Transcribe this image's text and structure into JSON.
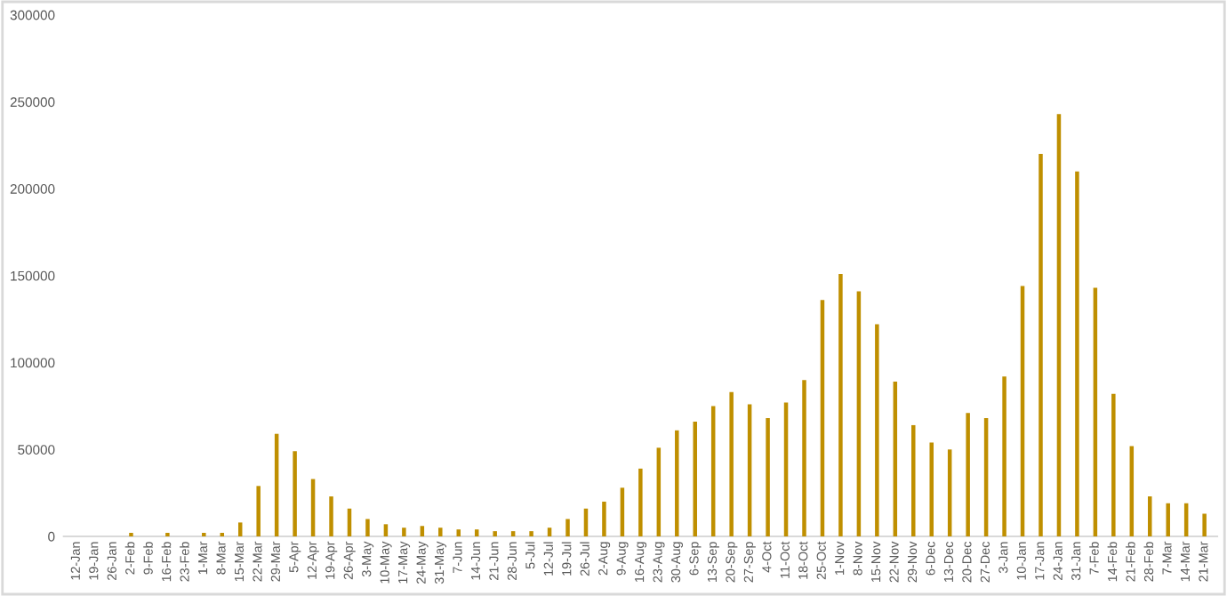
{
  "chart_data": {
    "type": "bar",
    "categories": [
      "12-Jan",
      "19-Jan",
      "26-Jan",
      "2-Feb",
      "9-Feb",
      "16-Feb",
      "23-Feb",
      "1-Mar",
      "8-Mar",
      "15-Mar",
      "22-Mar",
      "29-Mar",
      "5-Apr",
      "12-Apr",
      "19-Apr",
      "26-Apr",
      "3-May",
      "10-May",
      "17-May",
      "24-May",
      "31-May",
      "7-Jun",
      "14-Jun",
      "21-Jun",
      "28-Jun",
      "5-Jul",
      "12-Jul",
      "19-Jul",
      "26-Jul",
      "2-Aug",
      "9-Aug",
      "16-Aug",
      "23-Aug",
      "30-Aug",
      "6-Sep",
      "13-Sep",
      "20-Sep",
      "27-Sep",
      "4-Oct",
      "11-Oct",
      "18-Oct",
      "25-Oct",
      "1-Nov",
      "8-Nov",
      "15-Nov",
      "22-Nov",
      "29-Nov",
      "6-Dec",
      "13-Dec",
      "20-Dec",
      "27-Dec",
      "3-Jan",
      "10-Jan",
      "17-Jan",
      "24-Jan",
      "31-Jan",
      "7-Feb",
      "14-Feb",
      "21-Feb",
      "28-Feb",
      "7-Mar",
      "14-Mar",
      "21-Mar"
    ],
    "values": [
      0,
      0,
      0,
      2000,
      0,
      2000,
      0,
      2000,
      2000,
      8000,
      29000,
      59000,
      49000,
      33000,
      23000,
      16000,
      10000,
      7000,
      5000,
      6000,
      5000,
      4000,
      4000,
      3000,
      3000,
      3000,
      5000,
      10000,
      16000,
      20000,
      28000,
      39000,
      51000,
      61000,
      66000,
      75000,
      83000,
      76000,
      68000,
      77000,
      90000,
      136000,
      151000,
      141000,
      122000,
      89000,
      64000,
      54000,
      50000,
      71000,
      68000,
      92000,
      144000,
      220000,
      243000,
      210000,
      143000,
      82000,
      52000,
      23000,
      19000,
      19000,
      13000
    ],
    "color": "#bf8f00",
    "ylim": [
      0,
      300000
    ],
    "yticks": [
      0,
      50000,
      100000,
      150000,
      200000,
      250000,
      300000
    ],
    "grid": false,
    "legend": false
  }
}
